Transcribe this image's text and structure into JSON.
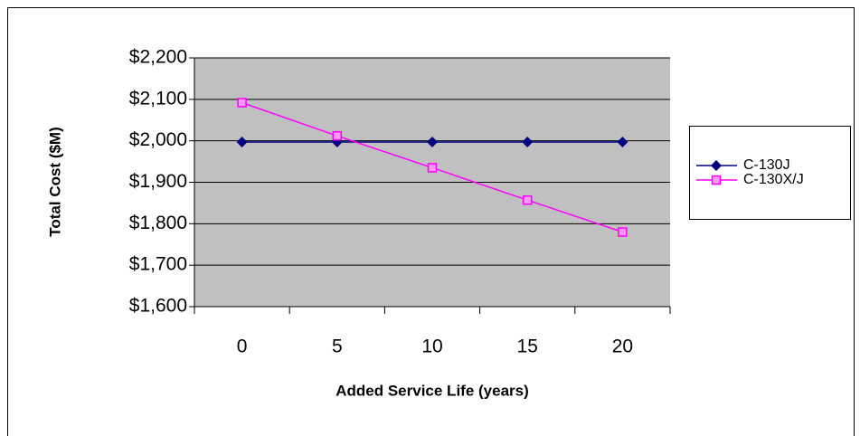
{
  "chart_data": {
    "type": "line",
    "x_label": "Added Service Life (years)",
    "y_label": "Total Cost ($M)",
    "categories": [
      "0",
      "5",
      "10",
      "15",
      "20"
    ],
    "series": [
      {
        "name": "C-130J",
        "color": "#000080",
        "marker": "diamond",
        "values": [
          1997,
          1997,
          1997,
          1997,
          1997
        ]
      },
      {
        "name": "C-130X/J",
        "color": "#ff00ff",
        "marker": "square",
        "values": [
          2092,
          2012,
          1935,
          1857,
          1780
        ]
      }
    ],
    "ylim": [
      1600,
      2200
    ],
    "yticks": [
      {
        "value": 1600,
        "label": "$1,600"
      },
      {
        "value": 1700,
        "label": "$1,700"
      },
      {
        "value": 1800,
        "label": "$1,800"
      },
      {
        "value": 1900,
        "label": "$1,900"
      },
      {
        "value": 2000,
        "label": "$2,000"
      },
      {
        "value": 2100,
        "label": "$2,100"
      },
      {
        "value": 2200,
        "label": "$2,200"
      }
    ],
    "grid": true,
    "plot_background": "#c0c0c0",
    "legend": "right"
  }
}
